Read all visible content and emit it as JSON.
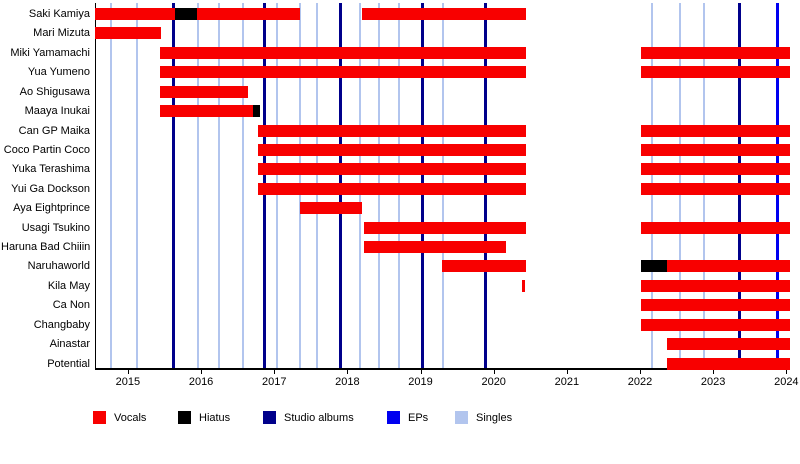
{
  "chart_data": {
    "type": "timeline",
    "title": "",
    "x_range": [
      2014.55,
      2024.05
    ],
    "x_ticks": [
      "2015",
      "2016",
      "2017",
      "2018",
      "2019",
      "2020",
      "2021",
      "2022",
      "2023",
      "2024"
    ],
    "grid": "vertical-event-lines",
    "legend_position": "bottom",
    "colors": {
      "vocals": "#f80000",
      "hiatus": "#000000",
      "studio_albums": "#00008b",
      "eps": "#0000f0",
      "singles": "#b2c5ee"
    },
    "legend": [
      {
        "key": "vocals",
        "label": "Vocals"
      },
      {
        "key": "hiatus",
        "label": "Hiatus"
      },
      {
        "key": "studio_albums",
        "label": "Studio albums"
      },
      {
        "key": "eps",
        "label": "EPs"
      },
      {
        "key": "singles",
        "label": "Singles"
      }
    ],
    "releases": {
      "singles": [
        2014.77,
        2015.12,
        2015.96,
        2016.24,
        2016.57,
        2017.04,
        2017.35,
        2017.58,
        2018.17,
        2018.43,
        2018.7,
        2019.31,
        2022.17,
        2022.54,
        2022.87
      ],
      "studio_albums": [
        2015.62,
        2016.87,
        2017.91,
        2019.03,
        2019.89,
        2023.36
      ],
      "eps": [
        2023.88
      ]
    },
    "members": [
      {
        "name": "Saki Kamiya",
        "segments": [
          {
            "kind": "vocals",
            "start": 2014.55,
            "end": 2015.64
          },
          {
            "kind": "hiatus",
            "start": 2015.64,
            "end": 2015.94
          },
          {
            "kind": "vocals",
            "start": 2015.94,
            "end": 2017.35
          },
          {
            "kind": "vocals",
            "start": 2018.2,
            "end": 2020.44
          }
        ]
      },
      {
        "name": "Mari Mizuta",
        "segments": [
          {
            "kind": "vocals",
            "start": 2014.55,
            "end": 2015.45
          }
        ]
      },
      {
        "name": "Miki Yamamachi",
        "segments": [
          {
            "kind": "vocals",
            "start": 2015.44,
            "end": 2020.44
          },
          {
            "kind": "vocals",
            "start": 2022.01,
            "end": 2024.05
          }
        ]
      },
      {
        "name": "Yua Yumeno",
        "segments": [
          {
            "kind": "vocals",
            "start": 2015.44,
            "end": 2020.44
          },
          {
            "kind": "vocals",
            "start": 2022.01,
            "end": 2024.05
          }
        ]
      },
      {
        "name": "Ao Shigusawa",
        "segments": [
          {
            "kind": "vocals",
            "start": 2015.44,
            "end": 2016.64
          }
        ]
      },
      {
        "name": "Maaya Inukai",
        "segments": [
          {
            "kind": "vocals",
            "start": 2015.44,
            "end": 2016.71
          },
          {
            "kind": "hiatus",
            "start": 2016.71,
            "end": 2016.8
          }
        ]
      },
      {
        "name": "Can GP Maika",
        "segments": [
          {
            "kind": "vocals",
            "start": 2016.78,
            "end": 2020.44
          },
          {
            "kind": "vocals",
            "start": 2022.01,
            "end": 2024.05
          }
        ]
      },
      {
        "name": "Coco Partin Coco",
        "segments": [
          {
            "kind": "vocals",
            "start": 2016.78,
            "end": 2020.44
          },
          {
            "kind": "vocals",
            "start": 2022.01,
            "end": 2024.05
          }
        ]
      },
      {
        "name": "Yuka Terashima",
        "segments": [
          {
            "kind": "vocals",
            "start": 2016.78,
            "end": 2020.44
          },
          {
            "kind": "vocals",
            "start": 2022.01,
            "end": 2024.05
          }
        ]
      },
      {
        "name": "Yui Ga Dockson",
        "segments": [
          {
            "kind": "vocals",
            "start": 2016.78,
            "end": 2020.44
          },
          {
            "kind": "vocals",
            "start": 2022.01,
            "end": 2024.05
          }
        ]
      },
      {
        "name": "Aya Eightprince",
        "segments": [
          {
            "kind": "vocals",
            "start": 2017.35,
            "end": 2018.2
          }
        ]
      },
      {
        "name": "Usagi Tsukino",
        "segments": [
          {
            "kind": "vocals",
            "start": 2018.23,
            "end": 2020.44
          },
          {
            "kind": "vocals",
            "start": 2022.01,
            "end": 2024.05
          }
        ]
      },
      {
        "name": "Haruna Bad Chiiin",
        "segments": [
          {
            "kind": "vocals",
            "start": 2018.23,
            "end": 2020.17
          }
        ]
      },
      {
        "name": "Naruhaworld",
        "segments": [
          {
            "kind": "vocals",
            "start": 2019.29,
            "end": 2020.44
          },
          {
            "kind": "hiatus",
            "start": 2022.01,
            "end": 2022.37
          },
          {
            "kind": "vocals",
            "start": 2022.37,
            "end": 2024.05
          }
        ]
      },
      {
        "name": "Kila May",
        "segments": [
          {
            "kind": "vocals",
            "start": 2020.38,
            "end": 2020.43
          },
          {
            "kind": "vocals",
            "start": 2022.01,
            "end": 2024.05
          }
        ]
      },
      {
        "name": "Ca Non",
        "segments": [
          {
            "kind": "vocals",
            "start": 2022.01,
            "end": 2024.05
          }
        ]
      },
      {
        "name": "Changbaby",
        "segments": [
          {
            "kind": "vocals",
            "start": 2022.01,
            "end": 2024.05
          }
        ]
      },
      {
        "name": "Ainastar",
        "segments": [
          {
            "kind": "vocals",
            "start": 2022.37,
            "end": 2024.05
          }
        ]
      },
      {
        "name": "Potential",
        "segments": [
          {
            "kind": "vocals",
            "start": 2022.37,
            "end": 2024.05
          }
        ]
      }
    ]
  }
}
